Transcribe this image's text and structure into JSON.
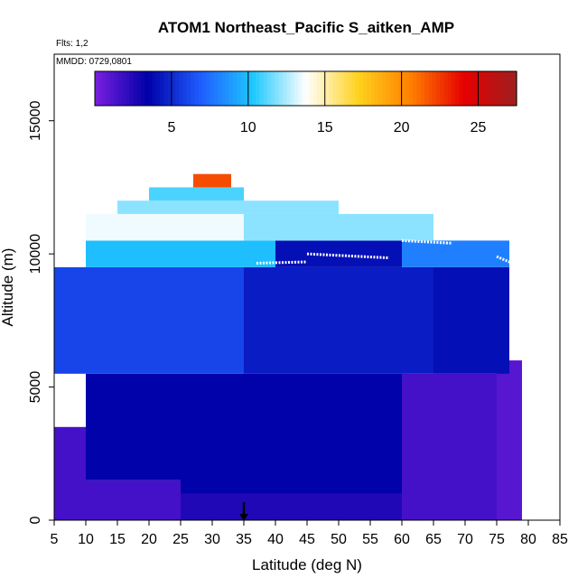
{
  "chart_data": {
    "type": "heatmap",
    "title": "ATOM1 Northeast_Pacific S_aitken_AMP",
    "annotation_flights": "Flts: 1,2",
    "annotation_dates": "MMDD: 0729,0801",
    "xlabel": "Latitude (deg N)",
    "ylabel": "Altitude (m)",
    "xlim": [
      5,
      85
    ],
    "ylim": [
      0,
      17500
    ],
    "xticks": [
      5,
      10,
      15,
      20,
      25,
      30,
      35,
      40,
      45,
      50,
      55,
      60,
      65,
      70,
      75,
      80,
      85
    ],
    "yticks": [
      0,
      5000,
      10000,
      15000
    ],
    "colorbar": {
      "range": [
        0,
        27.5
      ],
      "ticks": [
        5,
        10,
        15,
        20,
        25
      ],
      "colors": [
        "#7a1fe0",
        "#0000a8",
        "#1f5cff",
        "#1ec8ff",
        "#ffffff",
        "#ffd21e",
        "#ff7f00",
        "#e60000",
        "#9e1f1f"
      ]
    },
    "marker_latitude": 35,
    "cells": [
      {
        "lat": [
          5,
          10
        ],
        "alt": [
          0,
          3500
        ],
        "value": 1.5
      },
      {
        "lat": [
          10,
          25
        ],
        "alt": [
          0,
          1500
        ],
        "value": 1.5
      },
      {
        "lat": [
          25,
          60
        ],
        "alt": [
          0,
          1000
        ],
        "value": 2.5
      },
      {
        "lat": [
          60,
          75
        ],
        "alt": [
          0,
          5500
        ],
        "value": 1.5
      },
      {
        "lat": [
          75,
          79
        ],
        "alt": [
          0,
          6000
        ],
        "value": 1.0
      },
      {
        "lat": [
          10,
          25
        ],
        "alt": [
          1500,
          5500
        ],
        "value": 3.5
      },
      {
        "lat": [
          25,
          60
        ],
        "alt": [
          1000,
          5500
        ],
        "value": 3.5
      },
      {
        "lat": [
          5,
          35
        ],
        "alt": [
          5500,
          9500
        ],
        "value": 6.0
      },
      {
        "lat": [
          35,
          65
        ],
        "alt": [
          5500,
          9500
        ],
        "value": 4.5
      },
      {
        "lat": [
          65,
          77
        ],
        "alt": [
          5500,
          9500
        ],
        "value": 4.0
      },
      {
        "lat": [
          10,
          40
        ],
        "alt": [
          9500,
          10500
        ],
        "value": 10.0
      },
      {
        "lat": [
          40,
          60
        ],
        "alt": [
          9500,
          10500
        ],
        "value": 4.0
      },
      {
        "lat": [
          60,
          77
        ],
        "alt": [
          9500,
          10500
        ],
        "value": 8.0
      },
      {
        "lat": [
          10,
          35
        ],
        "alt": [
          10500,
          11500
        ],
        "value": 13.5
      },
      {
        "lat": [
          35,
          65
        ],
        "alt": [
          10500,
          11500
        ],
        "value": 12.0
      },
      {
        "lat": [
          15,
          50
        ],
        "alt": [
          11500,
          12000
        ],
        "value": 12.0
      },
      {
        "lat": [
          20,
          35
        ],
        "alt": [
          12000,
          12500
        ],
        "value": 11.0
      },
      {
        "lat": [
          27,
          33
        ],
        "alt": [
          12500,
          13000
        ],
        "value": 22.0
      }
    ],
    "flight_tracks": [
      {
        "lat": [
          45,
          58
        ],
        "alt": [
          10000,
          9850
        ]
      },
      {
        "lat": [
          37,
          45
        ],
        "alt": [
          9650,
          9700
        ]
      },
      {
        "lat": [
          60,
          68
        ],
        "alt": [
          10500,
          10400
        ]
      },
      {
        "lat": [
          75,
          78
        ],
        "alt": [
          9900,
          9600
        ]
      }
    ]
  }
}
